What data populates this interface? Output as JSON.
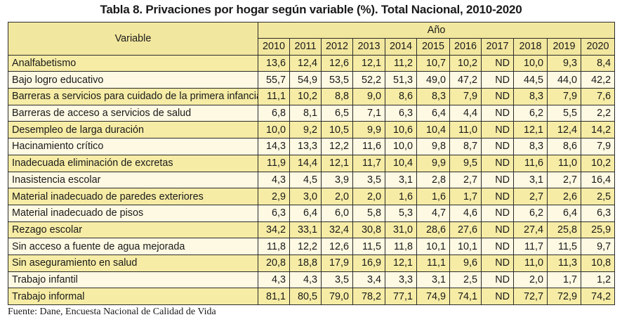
{
  "title": "Tabla 8. Privaciones por hogar según variable (%). Total Nacional, 2010-2020",
  "header": {
    "variable": "Variable",
    "year_group": "Año"
  },
  "years": [
    "2010",
    "2011",
    "2012",
    "2013",
    "2014",
    "2015",
    "2016",
    "2017",
    "2018",
    "2019",
    "2020"
  ],
  "rows": [
    {
      "name": "Analfabetismo",
      "values": [
        "13,6",
        "12,4",
        "12,6",
        "12,1",
        "11,2",
        "10,7",
        "10,2",
        "ND",
        "10,0",
        "9,3",
        "8,4"
      ]
    },
    {
      "name": "Bajo logro educativo",
      "values": [
        "55,7",
        "54,9",
        "53,5",
        "52,2",
        "51,3",
        "49,0",
        "47,2",
        "ND",
        "44,5",
        "44,0",
        "42,2"
      ]
    },
    {
      "name": "Barreras a servicios para cuidado de la primera infancia",
      "values": [
        "11,1",
        "10,2",
        "8,8",
        "9,0",
        "8,6",
        "8,3",
        "7,9",
        "ND",
        "8,3",
        "7,9",
        "7,6"
      ]
    },
    {
      "name": "Barreras de acceso a servicios de salud",
      "values": [
        "6,8",
        "8,1",
        "6,5",
        "7,1",
        "6,3",
        "6,4",
        "4,4",
        "ND",
        "6,2",
        "5,5",
        "2,2"
      ]
    },
    {
      "name": "Desempleo de larga duración",
      "values": [
        "10,0",
        "9,2",
        "10,5",
        "9,9",
        "10,6",
        "10,4",
        "11,0",
        "ND",
        "12,1",
        "12,4",
        "14,2"
      ]
    },
    {
      "name": "Hacinamiento crítico",
      "values": [
        "14,3",
        "13,3",
        "12,2",
        "11,6",
        "10,0",
        "9,8",
        "8,7",
        "ND",
        "8,3",
        "8,6",
        "7,9"
      ]
    },
    {
      "name": "Inadecuada eliminación de excretas",
      "values": [
        "11,9",
        "14,4",
        "12,1",
        "11,7",
        "10,4",
        "9,9",
        "9,5",
        "ND",
        "11,6",
        "11,0",
        "10,2"
      ]
    },
    {
      "name": "Inasistencia escolar",
      "values": [
        "4,3",
        "4,5",
        "3,9",
        "3,5",
        "3,1",
        "2,8",
        "2,7",
        "ND",
        "3,1",
        "2,7",
        "16,4"
      ]
    },
    {
      "name": "Material inadecuado de paredes exteriores",
      "values": [
        "2,9",
        "3,0",
        "2,0",
        "2,0",
        "1,6",
        "1,6",
        "1,7",
        "ND",
        "2,7",
        "2,6",
        "2,5"
      ]
    },
    {
      "name": "Material inadecuado de pisos",
      "values": [
        "6,3",
        "6,4",
        "6,0",
        "5,8",
        "5,3",
        "4,7",
        "4,6",
        "ND",
        "6,2",
        "6,4",
        "6,3"
      ]
    },
    {
      "name": "Rezago escolar",
      "values": [
        "34,2",
        "33,1",
        "32,4",
        "30,8",
        "31,0",
        "28,6",
        "27,6",
        "ND",
        "27,4",
        "25,8",
        "25,9"
      ]
    },
    {
      "name": "Sin acceso a fuente de agua mejorada",
      "values": [
        "11,8",
        "12,2",
        "12,6",
        "11,5",
        "11,8",
        "10,1",
        "10,1",
        "ND",
        "11,7",
        "11,5",
        "9,7"
      ]
    },
    {
      "name": "Sin aseguramiento en salud",
      "values": [
        "20,8",
        "18,8",
        "17,9",
        "16,9",
        "12,1",
        "11,1",
        "9,6",
        "ND",
        "11,0",
        "11,3",
        "10,8"
      ]
    },
    {
      "name": "Trabajo infantil",
      "values": [
        "4,3",
        "4,3",
        "3,5",
        "3,4",
        "3,3",
        "3,1",
        "2,5",
        "ND",
        "2,0",
        "1,7",
        "1,2"
      ]
    },
    {
      "name": "Trabajo informal",
      "values": [
        "81,1",
        "80,5",
        "79,0",
        "78,2",
        "77,1",
        "74,9",
        "74,1",
        "ND",
        "72,7",
        "72,9",
        "74,2"
      ]
    }
  ],
  "source": "Fuente: Dane, Encuesta Nacional de Calidad de Vida"
}
